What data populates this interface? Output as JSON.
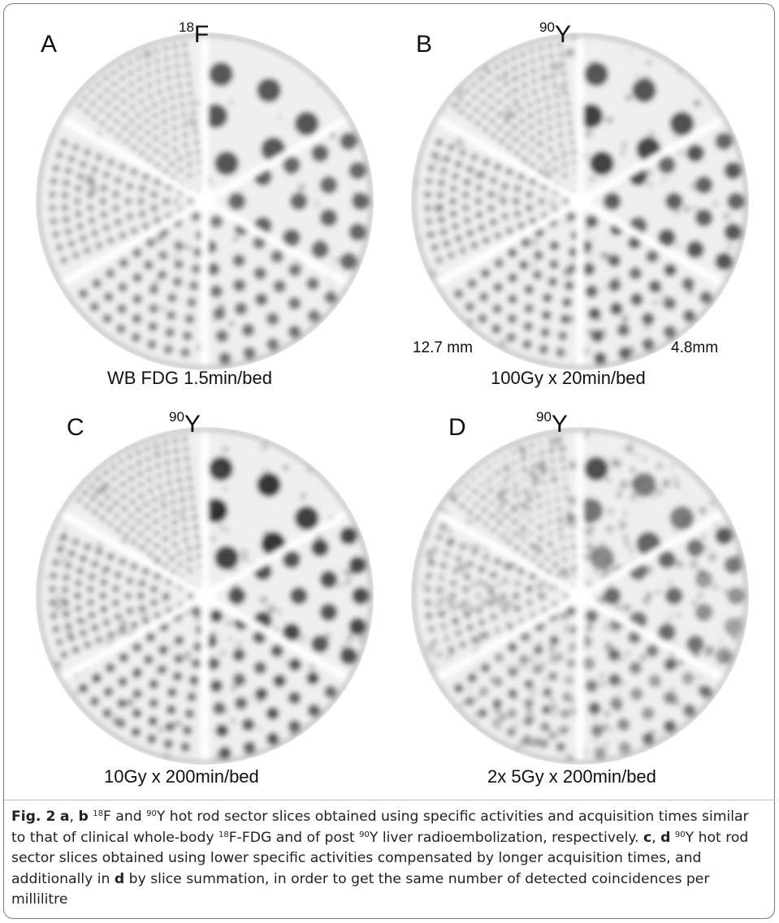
{
  "panels": [
    {
      "letter": "A",
      "iso_mass": "18",
      "iso_elem": "F",
      "caption": "WB FDG 1.5min/bed",
      "noise": 0.05,
      "rod_dark": 0.72
    },
    {
      "letter": "B",
      "iso_mass": "90",
      "iso_elem": "Y",
      "caption": "100Gy x 20min/bed",
      "noise": 0.12,
      "rod_dark": 0.78
    },
    {
      "letter": "C",
      "iso_mass": "90",
      "iso_elem": "Y",
      "caption": "10Gy x 200min/bed",
      "noise": 0.14,
      "rod_dark": 0.85
    },
    {
      "letter": "D",
      "iso_mass": "90",
      "iso_elem": "Y",
      "caption": "2x 5Gy x 200min/bed",
      "noise": 0.35,
      "rod_dark": 0.6
    }
  ],
  "dims": {
    "large": "12.7 mm",
    "small": "4.8mm"
  },
  "figure_caption": {
    "fig_label": "Fig. 2",
    "l1": "a",
    "sep1": ", ",
    "l2": "b",
    "t1a": " ",
    "t1sup1": "18",
    "t1b": "F and ",
    "t1sup2": "90",
    "t1c": "Y hot rod sector slices obtained using specific activities and acquisition times similar to that of clinical whole-body ",
    "t1sup3": "18",
    "t1d": "F-FDG and of post ",
    "t1sup4": "90",
    "t1e": "Y liver radioembolization, respectively. ",
    "l3": "c",
    "sep2": ", ",
    "l4": "d",
    "t2a": " ",
    "t2sup1": "90",
    "t2b": "Y hot rod sector slices obtained using lower specific activities compensated by longer acquisition times, and additionally in ",
    "l5": "d",
    "t2c": " by slice summation, in order to get the same number of detected coincidences per millilitre"
  }
}
